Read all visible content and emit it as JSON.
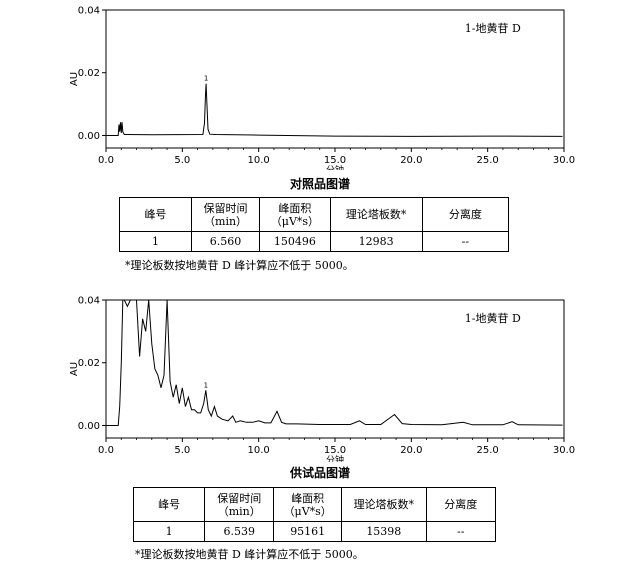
{
  "chart_data": [
    {
      "type": "line",
      "title": "对照品图谱",
      "annotation": "1-地黄苷 D",
      "peak_label": "1",
      "xlabel": "分钟",
      "ylabel": "AU",
      "xlim": [
        0,
        30
      ],
      "ylim": [
        -0.004,
        0.04
      ],
      "xticks": [
        "0.0",
        "5.0",
        "10.0",
        "15.0",
        "20.0",
        "25.0",
        "30.0"
      ],
      "yticks": [
        "0.00",
        "0.02",
        "0.04"
      ],
      "x": [
        0,
        0.8,
        0.85,
        0.9,
        0.95,
        1.0,
        1.05,
        1.1,
        1.2,
        3,
        6.35,
        6.45,
        6.52,
        6.56,
        6.6,
        6.68,
        6.8,
        7.2,
        10,
        15,
        20,
        25,
        29.9
      ],
      "y": [
        0.0,
        0.0,
        0.0035,
        0.0012,
        0.0042,
        0.0008,
        0.0043,
        0.0012,
        0.0003,
        0.0002,
        0.0003,
        0.004,
        0.013,
        0.0165,
        0.011,
        0.002,
        0.0004,
        0.0003,
        0.0001,
        -0.0002,
        -0.0003,
        -0.0002,
        -0.0003
      ]
    },
    {
      "type": "line",
      "title": "供试品图谱",
      "annotation": "1-地黄苷 D",
      "peak_label": "1",
      "xlabel": "分钟",
      "ylabel": "AU",
      "xlim": [
        0,
        30
      ],
      "ylim": [
        -0.004,
        0.04
      ],
      "xticks": [
        "0.0",
        "5.0",
        "10.0",
        "15.0",
        "20.0",
        "25.0",
        "30.0"
      ],
      "yticks": [
        "0.00",
        "0.02",
        "0.04"
      ],
      "x": [
        0,
        0.8,
        0.9,
        1.0,
        1.1,
        1.2,
        1.4,
        1.6,
        1.8,
        2.0,
        2.2,
        2.4,
        2.6,
        2.8,
        3.0,
        3.2,
        3.4,
        3.6,
        3.8,
        4.0,
        4.2,
        4.4,
        4.6,
        4.8,
        5.0,
        5.2,
        5.4,
        5.6,
        5.8,
        6.0,
        6.2,
        6.4,
        6.54,
        6.7,
        6.9,
        7.1,
        7.3,
        7.6,
        8.0,
        8.3,
        8.5,
        8.8,
        9.2,
        9.6,
        10.0,
        10.4,
        10.8,
        11.2,
        11.5,
        11.8,
        12.5,
        14,
        16,
        16.6,
        17,
        18,
        18.9,
        19.4,
        20,
        22,
        23.4,
        24,
        26,
        26.6,
        27,
        29.9
      ],
      "y": [
        0.0,
        0.0,
        0.006,
        0.02,
        0.04,
        0.04,
        0.038,
        0.04,
        0.04,
        0.04,
        0.022,
        0.034,
        0.03,
        0.04,
        0.026,
        0.018,
        0.016,
        0.012,
        0.016,
        0.04,
        0.014,
        0.009,
        0.013,
        0.007,
        0.012,
        0.006,
        0.009,
        0.005,
        0.005,
        0.004,
        0.004,
        0.007,
        0.0112,
        0.005,
        0.003,
        0.006,
        0.003,
        0.002,
        0.0015,
        0.003,
        0.001,
        0.0015,
        0.001,
        0.001,
        0.0015,
        0.0008,
        0.0008,
        0.0045,
        0.001,
        0.0005,
        0.0005,
        0.0003,
        0.0003,
        0.0015,
        0.0003,
        0.0003,
        0.0035,
        0.0006,
        0.0003,
        0.0002,
        0.001,
        0.0002,
        0.0002,
        0.0012,
        0.0002,
        0.0001
      ]
    }
  ],
  "tables": [
    {
      "headers": [
        [
          "峰号"
        ],
        [
          "保留时间",
          "（min）"
        ],
        [
          "峰面积",
          "（μV*s）"
        ],
        [
          "理论塔板数*"
        ],
        [
          "分离度"
        ]
      ],
      "row": [
        "1",
        "6.560",
        "150496",
        "12983",
        "--"
      ],
      "note": "*理论板数按地黄苷 D 峰计算应不低于 5000。"
    },
    {
      "headers": [
        [
          "峰号"
        ],
        [
          "保留时间",
          "（min）"
        ],
        [
          "峰面积",
          "（μV*s）"
        ],
        [
          "理论塔板数*"
        ],
        [
          "分离度"
        ]
      ],
      "row": [
        "1",
        "6.539",
        "95161",
        "15398",
        "--"
      ],
      "note": "*理论板数按地黄苷 D 峰计算应不低于 5000。"
    }
  ]
}
